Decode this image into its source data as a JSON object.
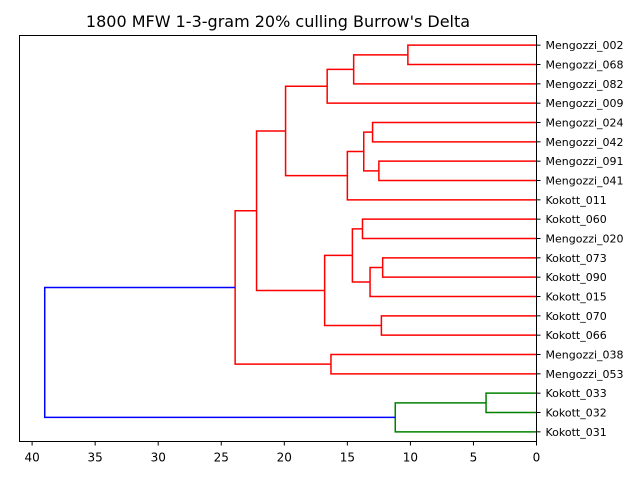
{
  "chart_data": {
    "type": "dendrogram",
    "title": "1800 MFW 1-3-gram 20% culling Burrow's Delta",
    "orientation": "left",
    "xlim": [
      41,
      0
    ],
    "x_ticks": [
      40,
      35,
      30,
      25,
      20,
      15,
      10,
      5,
      0
    ],
    "leaves": [
      "Mengozzi_002",
      "Mengozzi_068",
      "Mengozzi_082",
      "Mengozzi_009",
      "Mengozzi_024",
      "Mengozzi_042",
      "Mengozzi_091",
      "Mengozzi_041",
      "Kokott_011",
      "Kokott_060",
      "Mengozzi_020",
      "Kokott_073",
      "Kokott_090",
      "Kokott_015",
      "Kokott_070",
      "Kokott_066",
      "Mengozzi_038",
      "Mengozzi_053",
      "Kokott_033",
      "Kokott_032",
      "Kokott_031"
    ],
    "merges": [
      {
        "left": "Mengozzi_002",
        "right": "Mengozzi_068",
        "height": 10.2,
        "color": "#ff0000"
      },
      {
        "left": "m0",
        "right": "Mengozzi_082",
        "height": 14.5,
        "color": "#ff0000"
      },
      {
        "left": "m1",
        "right": "Mengozzi_009",
        "height": 16.6,
        "color": "#ff0000"
      },
      {
        "left": "Mengozzi_024",
        "right": "Mengozzi_042",
        "height": 13.0,
        "color": "#ff0000"
      },
      {
        "left": "Mengozzi_091",
        "right": "Mengozzi_041",
        "height": 12.5,
        "color": "#ff0000"
      },
      {
        "left": "m3",
        "right": "m4",
        "height": 13.7,
        "color": "#ff0000"
      },
      {
        "left": "m5",
        "right": "Kokott_011",
        "height": 15.0,
        "color": "#ff0000"
      },
      {
        "left": "m2",
        "right": "m6",
        "height": 19.9,
        "color": "#ff0000"
      },
      {
        "left": "Kokott_060",
        "right": "Mengozzi_020",
        "height": 13.8,
        "color": "#ff0000"
      },
      {
        "left": "Kokott_073",
        "right": "Kokott_090",
        "height": 12.2,
        "color": "#ff0000"
      },
      {
        "left": "m9",
        "right": "Kokott_015",
        "height": 13.2,
        "color": "#ff0000"
      },
      {
        "left": "m8",
        "right": "m10",
        "height": 14.6,
        "color": "#ff0000"
      },
      {
        "left": "Kokott_070",
        "right": "Kokott_066",
        "height": 12.3,
        "color": "#ff0000"
      },
      {
        "left": "m11",
        "right": "m12",
        "height": 16.8,
        "color": "#ff0000"
      },
      {
        "left": "m7",
        "right": "m13",
        "height": 22.2,
        "color": "#ff0000"
      },
      {
        "left": "Mengozzi_038",
        "right": "Mengozzi_053",
        "height": 16.3,
        "color": "#ff0000"
      },
      {
        "left": "m14",
        "right": "m15",
        "height": 23.9,
        "color": "#ff0000"
      },
      {
        "left": "Kokott_033",
        "right": "Kokott_032",
        "height": 4.0,
        "color": "#008000"
      },
      {
        "left": "m17",
        "right": "Kokott_031",
        "height": 11.2,
        "color": "#008000"
      },
      {
        "left": "m16",
        "right": "m18",
        "height": 39.0,
        "color": "#0000ff"
      }
    ]
  }
}
